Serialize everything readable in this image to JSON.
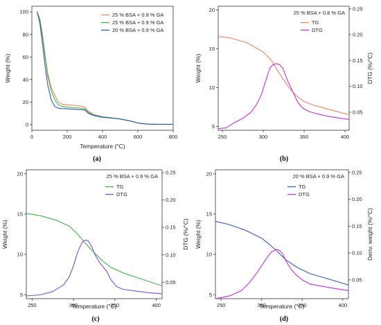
{
  "chart_data": [
    {
      "id": "a",
      "type": "line",
      "panel_label": "(a)",
      "xlabel": "Temperature (°C)",
      "ylabel": "Weight (%)",
      "xlim": [
        0,
        800
      ],
      "ylim": [
        -5,
        105
      ],
      "xticks": [
        0,
        200,
        400,
        600,
        800
      ],
      "yticks": [
        0,
        20,
        40,
        60,
        80,
        100
      ],
      "legend_position": "top-right",
      "series": [
        {
          "name": "25 % BSA + 0.8 % GA",
          "color": "#f0845f",
          "x": [
            30,
            45,
            60,
            75,
            90,
            110,
            130,
            150,
            170,
            200,
            250,
            300,
            320,
            350,
            400,
            450,
            500,
            550,
            600,
            650,
            700,
            750,
            800
          ],
          "y": [
            100,
            94,
            80,
            62,
            45,
            33,
            26,
            20,
            18,
            17.5,
            17,
            15.5,
            12,
            9,
            7,
            6,
            5,
            3.5,
            1.5,
            0.5,
            0.3,
            0.3,
            0.3
          ]
        },
        {
          "name": "25 % BSA + 0.9 % GA",
          "color": "#3fb34a",
          "x": [
            30,
            45,
            60,
            75,
            90,
            110,
            130,
            150,
            170,
            200,
            250,
            300,
            320,
            350,
            400,
            450,
            500,
            550,
            600,
            650,
            700,
            750,
            800
          ],
          "y": [
            100,
            93,
            78,
            60,
            43,
            30,
            22,
            17.5,
            16,
            15.5,
            15,
            14,
            11,
            8.5,
            7,
            6,
            5,
            3.5,
            1.5,
            0.5,
            0.3,
            0.3,
            0.3
          ]
        },
        {
          "name": "20 % BSA + 0.9 % GA",
          "color": "#3557b8",
          "x": [
            30,
            45,
            60,
            75,
            90,
            110,
            130,
            150,
            170,
            200,
            250,
            300,
            320,
            350,
            400,
            450,
            500,
            550,
            600,
            650,
            700,
            750,
            800
          ],
          "y": [
            100,
            90,
            72,
            52,
            35,
            22,
            16,
            14.5,
            14.2,
            14,
            13.5,
            13,
            10,
            8,
            6.5,
            5.8,
            5,
            3.5,
            1.5,
            0.5,
            0.3,
            0.3,
            0.3
          ]
        }
      ]
    },
    {
      "id": "b",
      "type": "line",
      "panel_label": "(b)",
      "title": "25 % BSA + 0.8 % GA",
      "xlabel": "",
      "ylabel": "Weight (%)",
      "y2label": "DTG (%/°C)",
      "xlim": [
        245,
        405
      ],
      "ylim": [
        4.5,
        20.5
      ],
      "y2lim": [
        0.015,
        0.255
      ],
      "xticks": [
        250,
        300,
        350,
        400
      ],
      "yticks": [
        5,
        10,
        15,
        20
      ],
      "y2ticks": [
        0.05,
        0.1,
        0.15,
        0.2,
        0.25
      ],
      "ylabel_color": "#f0845f",
      "y2label_color": "#c92fd0",
      "legend_position": "top-right",
      "series": [
        {
          "name": "TG",
          "color": "#f0845f",
          "axis": "left",
          "x": [
            245,
            260,
            280,
            300,
            310,
            320,
            330,
            340,
            350,
            360,
            380,
            405
          ],
          "y": [
            16.6,
            16.4,
            15.8,
            14.6,
            13.5,
            11.8,
            10.2,
            9,
            8.2,
            7.8,
            7.2,
            6.5
          ]
        },
        {
          "name": "DTG",
          "color": "#c92fd0",
          "axis": "right",
          "x": [
            245,
            255,
            265,
            275,
            285,
            292,
            298,
            303,
            308,
            312,
            316,
            320,
            324,
            330,
            336,
            342,
            348,
            355,
            365,
            380,
            395,
            405
          ],
          "y": [
            0.018,
            0.02,
            0.03,
            0.038,
            0.05,
            0.065,
            0.085,
            0.11,
            0.135,
            0.142,
            0.144,
            0.142,
            0.135,
            0.11,
            0.09,
            0.07,
            0.058,
            0.052,
            0.047,
            0.042,
            0.038,
            0.036
          ]
        }
      ]
    },
    {
      "id": "c",
      "type": "line",
      "panel_label": "(c)",
      "title": "25 % BSA + 0.9 % GA",
      "xlabel": "Temperature (°C)",
      "ylabel": "Weight (%)",
      "y2label": "DTG (%/°C)",
      "xlim": [
        243,
        407
      ],
      "ylim": [
        4.5,
        20.5
      ],
      "y2lim": [
        0.02,
        0.255
      ],
      "xticks": [
        250,
        300,
        350,
        400
      ],
      "yticks": [
        5,
        10,
        15,
        20
      ],
      "y2ticks": [
        0.05,
        0.1,
        0.15,
        0.2,
        0.25
      ],
      "ylabel_color": "#3fb34a",
      "y2label_color": "#7b4fd6",
      "legend_position": "top-right",
      "series": [
        {
          "name": "TG",
          "color": "#3fb34a",
          "axis": "left",
          "x": [
            243,
            260,
            280,
            295,
            305,
            315,
            325,
            335,
            345,
            360,
            380,
            407
          ],
          "y": [
            15.1,
            14.8,
            14.2,
            13.5,
            12.5,
            11.3,
            10.2,
            9.2,
            8.4,
            7.7,
            7,
            6.1
          ]
        },
        {
          "name": "DTG",
          "color": "#7b4fd6",
          "axis": "right",
          "x": [
            243,
            260,
            275,
            288,
            295,
            300,
            305,
            310,
            314,
            318,
            322,
            326,
            332,
            340,
            345,
            352,
            360,
            375,
            390,
            407
          ],
          "y": [
            0.025,
            0.027,
            0.033,
            0.045,
            0.06,
            0.08,
            0.105,
            0.122,
            0.127,
            0.125,
            0.115,
            0.1,
            0.085,
            0.07,
            0.055,
            0.042,
            0.037,
            0.034,
            0.031,
            0.029
          ]
        }
      ]
    },
    {
      "id": "d",
      "type": "line",
      "panel_label": "(d)",
      "title": "20 % BSA + 0.9 % GA",
      "xlabel": "Temperature (°C)",
      "ylabel": "Weight (%)",
      "y2label": "Deriv. weight (%/°C)",
      "xlim": [
        243,
        407
      ],
      "ylim": [
        4.5,
        20.5
      ],
      "y2lim": [
        0.015,
        0.255
      ],
      "xticks": [
        250,
        300,
        350,
        400
      ],
      "yticks": [
        5,
        10,
        15,
        20
      ],
      "y2ticks": [
        0.05,
        0.1,
        0.15,
        0.2,
        0.25
      ],
      "ylabel_color": "#3557b8",
      "y2label_color": "#c92fd0",
      "legend_position": "top-right",
      "series": [
        {
          "name": "TG",
          "color": "#3557b8",
          "axis": "left",
          "x": [
            243,
            260,
            280,
            300,
            310,
            320,
            330,
            345,
            360,
            380,
            407
          ],
          "y": [
            14.1,
            13.7,
            13,
            12,
            11.2,
            10.3,
            9.3,
            8.3,
            7.6,
            7,
            6.2
          ]
        },
        {
          "name": "DTG",
          "color": "#c92fd0",
          "axis": "right",
          "x": [
            243,
            260,
            275,
            285,
            295,
            305,
            312,
            318,
            322,
            326,
            330,
            336,
            342,
            350,
            360,
            375,
            390,
            407
          ],
          "y": [
            0.015,
            0.02,
            0.03,
            0.045,
            0.065,
            0.088,
            0.102,
            0.107,
            0.105,
            0.098,
            0.085,
            0.07,
            0.06,
            0.05,
            0.042,
            0.038,
            0.034,
            0.03
          ]
        }
      ]
    }
  ]
}
